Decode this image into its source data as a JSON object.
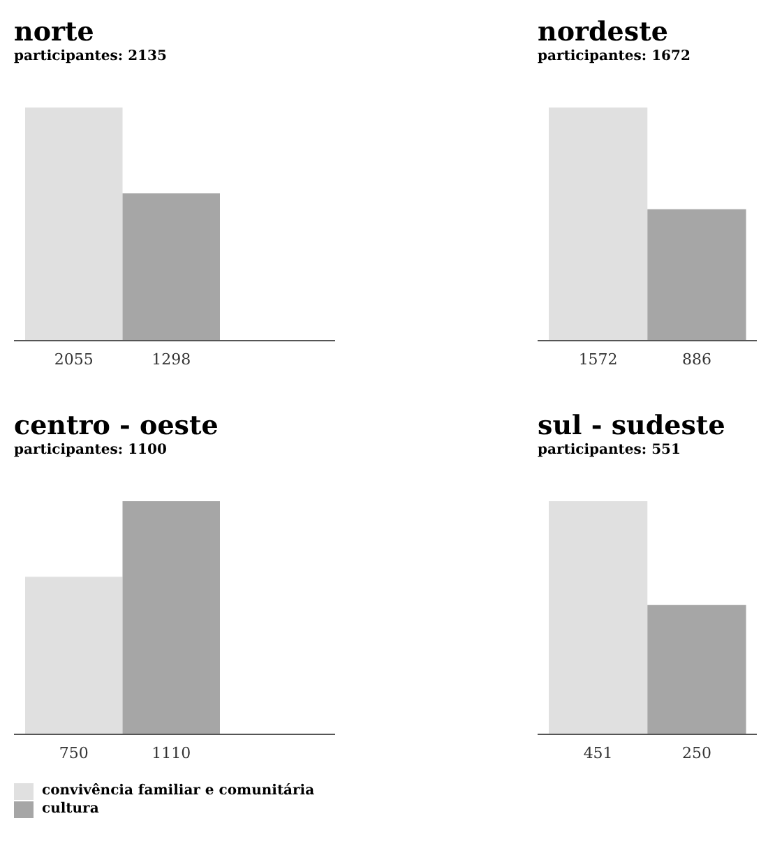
{
  "chart_data": [
    {
      "type": "bar",
      "title": "norte",
      "subtitle": "participantes: 2135",
      "categories": [
        null
      ],
      "data_labels": true,
      "series": [
        {
          "color": "#e0e0e0",
          "values": [
            2055
          ]
        },
        {
          "color": "#a6a6a6",
          "values": [
            1298
          ]
        }
      ]
    },
    {
      "type": "bar",
      "title": "nordeste",
      "subtitle": "participantes: 1672",
      "categories": [
        null
      ],
      "data_labels": true,
      "series": [
        {
          "color": "#e0e0e0",
          "values": [
            1572
          ]
        },
        {
          "color": "#a6a6a6",
          "values": [
            886
          ]
        }
      ]
    },
    {
      "type": "bar",
      "title": "centro - oeste",
      "subtitle": "participantes: 1100",
      "categories": [
        null
      ],
      "data_labels": true,
      "legend": "bottom",
      "series": [
        {
          "name": "convivência familiar e comunitária",
          "color": "#e0e0e0",
          "values": [
            750
          ]
        },
        {
          "name": "cultura",
          "color": "#a6a6a6",
          "values": [
            1110
          ]
        }
      ]
    },
    {
      "type": "bar",
      "title": "sul - sudeste",
      "subtitle": "participantes: 551",
      "categories": [
        null
      ],
      "data_labels": true,
      "series": [
        {
          "color": "#e0e0e0",
          "values": [
            451
          ]
        },
        {
          "color": "#a6a6a6",
          "values": [
            250
          ]
        }
      ]
    }
  ]
}
